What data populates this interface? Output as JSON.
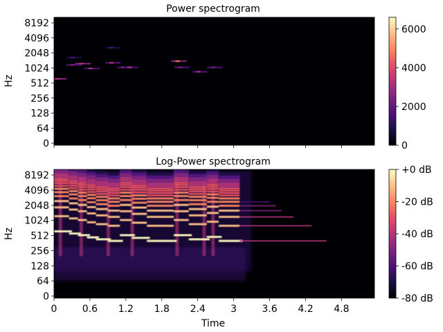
{
  "chart_data": [
    {
      "type": "heatmap",
      "title": "Power spectrogram",
      "ylabel": "Hz",
      "xlabel": "",
      "y_scale": "log2 (symlog)",
      "yticks": [
        "0",
        "64",
        "128",
        "256",
        "512",
        "1024",
        "2048",
        "4096",
        "8192"
      ],
      "ytick_values": [
        0,
        64,
        128,
        256,
        512,
        1024,
        2048,
        4096,
        8192
      ],
      "xticks_values": [
        0,
        0.6,
        1.2,
        1.8,
        2.4,
        3,
        3.6,
        4.2,
        4.8
      ],
      "xticks_labels_shown": false,
      "xlim": [
        0,
        5.35
      ],
      "colormap": "magma",
      "colorbar": {
        "ticks": [
          "0",
          "2000",
          "4000",
          "6000"
        ],
        "tick_values": [
          0,
          2000,
          4000,
          6000
        ],
        "range": [
          0,
          6600
        ]
      },
      "partials": [
        {
          "t": 0.05,
          "hz": 620,
          "level": 0.55
        },
        {
          "t": 0.3,
          "hz": 1180,
          "level": 0.35
        },
        {
          "t": 0.45,
          "hz": 1250,
          "level": 0.55
        },
        {
          "t": 0.6,
          "hz": 1000,
          "level": 0.45
        },
        {
          "t": 0.95,
          "hz": 1300,
          "level": 0.45
        },
        {
          "t": 1.15,
          "hz": 1050,
          "level": 0.45
        },
        {
          "t": 1.25,
          "hz": 1050,
          "level": 0.5
        },
        {
          "t": 2.05,
          "hz": 1400,
          "level": 0.7
        },
        {
          "t": 2.1,
          "hz": 1050,
          "level": 0.4
        },
        {
          "t": 2.4,
          "hz": 860,
          "level": 0.5
        },
        {
          "t": 2.65,
          "hz": 1050,
          "level": 0.35
        },
        {
          "t": 0.3,
          "hz": 1650,
          "level": 0.25
        },
        {
          "t": 0.95,
          "hz": 2600,
          "level": 0.2
        }
      ]
    },
    {
      "type": "heatmap",
      "title": "Log-Power spectrogram",
      "ylabel": "Hz",
      "xlabel": "Time",
      "y_scale": "log2 (symlog)",
      "yticks": [
        "0",
        "64",
        "128",
        "256",
        "512",
        "1024",
        "2048",
        "4096",
        "8192"
      ],
      "ytick_values": [
        0,
        64,
        128,
        256,
        512,
        1024,
        2048,
        4096,
        8192
      ],
      "xticks": [
        "0",
        "0.6",
        "1.2",
        "1.8",
        "2.4",
        "3",
        "3.6",
        "4.2",
        "4.8"
      ],
      "xticks_values": [
        0,
        0.6,
        1.2,
        1.8,
        2.4,
        3,
        3.6,
        4.2,
        4.8
      ],
      "xlim": [
        0,
        5.35
      ],
      "colormap": "magma",
      "colorbar": {
        "ticks": [
          "+0 dB",
          "-20 dB",
          "-40 dB",
          "-60 dB",
          "-80 dB"
        ],
        "tick_values": [
          0,
          -20,
          -40,
          -60,
          -80
        ],
        "range": [
          -80,
          0
        ]
      },
      "notes_fundamental": [
        {
          "t0": 0.0,
          "t1": 0.25,
          "hz": 620
        },
        {
          "t0": 0.25,
          "t1": 0.4,
          "hz": 560
        },
        {
          "t0": 0.4,
          "t1": 0.55,
          "hz": 520
        },
        {
          "t0": 0.55,
          "t1": 0.7,
          "hz": 470
        },
        {
          "t0": 0.7,
          "t1": 0.9,
          "hz": 430
        },
        {
          "t0": 0.9,
          "t1": 1.1,
          "hz": 400
        },
        {
          "t0": 1.1,
          "t1": 1.3,
          "hz": 520
        },
        {
          "t0": 1.3,
          "t1": 1.55,
          "hz": 460
        },
        {
          "t0": 1.55,
          "t1": 2.0,
          "hz": 400
        },
        {
          "t0": 2.0,
          "t1": 2.25,
          "hz": 520
        },
        {
          "t0": 2.25,
          "t1": 2.55,
          "hz": 430
        },
        {
          "t0": 2.55,
          "t1": 2.75,
          "hz": 480
        },
        {
          "t0": 2.75,
          "t1": 3.1,
          "hz": 400
        }
      ],
      "onsets": [
        0.1,
        0.45,
        0.9,
        1.3,
        2.05,
        2.5,
        2.65
      ]
    }
  ]
}
